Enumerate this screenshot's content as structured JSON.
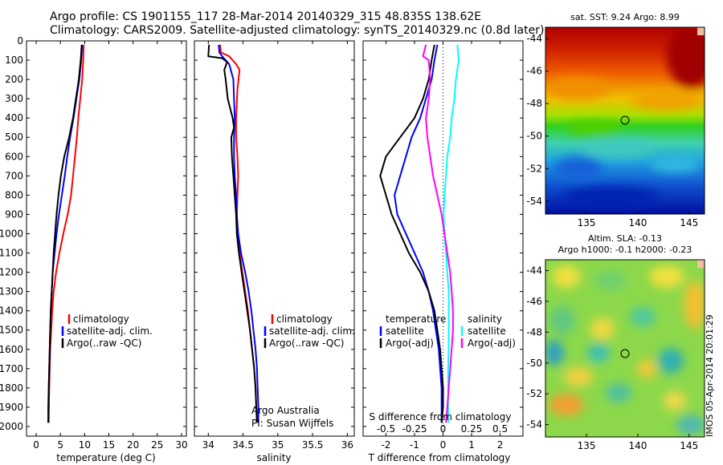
{
  "header": {
    "line1": "Argo profile: CS 1901155_117 28-Mar-2014 20140329_315 48.835S 138.62E",
    "line2": "Climatology: CARS2009. Satellite-adjusted climatology: synTS_20140329.nc (0.8d later)"
  },
  "stamp": "IMOS 05-Apr-2014 20:01:29",
  "colors": {
    "red": "#ff0000",
    "blue": "#0000ff",
    "black": "#000000",
    "cyan": "#00ffff",
    "magenta": "#ff00ff"
  },
  "chart_data": [
    {
      "type": "line",
      "name": "temperature-panel",
      "xlabel": "temperature (deg C)",
      "xlim": [
        -2,
        31
      ],
      "ylim": [
        0,
        2050
      ],
      "xticks": [
        0,
        5,
        10,
        15,
        20,
        25,
        30
      ],
      "yticks": [
        0,
        100,
        200,
        300,
        400,
        500,
        600,
        700,
        800,
        900,
        1000,
        1100,
        1200,
        1300,
        1400,
        1500,
        1600,
        1700,
        1800,
        1900,
        2000
      ],
      "legend": [
        "climatology",
        "satellite-adj. clim.",
        "Argo(..raw -QC)"
      ],
      "series": [
        {
          "name": "climatology",
          "color": "red",
          "points": [
            [
              9.8,
              20
            ],
            [
              9.7,
              100
            ],
            [
              9.5,
              200
            ],
            [
              9.1,
              300
            ],
            [
              8.7,
              400
            ],
            [
              8.4,
              500
            ],
            [
              8.0,
              600
            ],
            [
              7.6,
              700
            ],
            [
              7.2,
              800
            ],
            [
              6.5,
              900
            ],
            [
              5.6,
              1000
            ],
            [
              4.8,
              1100
            ],
            [
              4.1,
              1200
            ],
            [
              3.6,
              1300
            ],
            [
              3.3,
              1400
            ],
            [
              3.1,
              1500
            ],
            [
              2.9,
              1600
            ],
            [
              2.8,
              1700
            ],
            [
              2.7,
              1800
            ],
            [
              2.6,
              1900
            ],
            [
              2.6,
              1980
            ]
          ]
        },
        {
          "name": "satellite-adj. clim.",
          "color": "blue",
          "points": [
            [
              9.5,
              20
            ],
            [
              9.3,
              100
            ],
            [
              8.9,
              200
            ],
            [
              8.3,
              300
            ],
            [
              7.7,
              400
            ],
            [
              7.0,
              500
            ],
            [
              6.4,
              600
            ],
            [
              5.9,
              700
            ],
            [
              5.3,
              800
            ],
            [
              4.7,
              900
            ],
            [
              4.2,
              1000
            ],
            [
              3.8,
              1100
            ],
            [
              3.4,
              1200
            ],
            [
              3.2,
              1300
            ],
            [
              3.0,
              1400
            ],
            [
              2.9,
              1500
            ],
            [
              2.8,
              1600
            ],
            [
              2.7,
              1700
            ],
            [
              2.6,
              1800
            ],
            [
              2.6,
              1900
            ],
            [
              2.5,
              1980
            ]
          ]
        },
        {
          "name": "Argo(..raw -QC)",
          "color": "black",
          "points": [
            [
              9.4,
              20
            ],
            [
              9.2,
              100
            ],
            [
              8.8,
              200
            ],
            [
              8.2,
              300
            ],
            [
              7.6,
              400
            ],
            [
              6.8,
              500
            ],
            [
              5.8,
              600
            ],
            [
              5.1,
              700
            ],
            [
              4.6,
              800
            ],
            [
              4.2,
              900
            ],
            [
              3.9,
              1000
            ],
            [
              3.6,
              1100
            ],
            [
              3.4,
              1200
            ],
            [
              3.2,
              1300
            ],
            [
              3.0,
              1400
            ],
            [
              2.9,
              1500
            ],
            [
              2.8,
              1600
            ],
            [
              2.7,
              1700
            ],
            [
              2.6,
              1800
            ],
            [
              2.5,
              1900
            ],
            [
              2.5,
              1980
            ]
          ]
        }
      ]
    },
    {
      "type": "line",
      "name": "salinity-panel",
      "xlabel": "salinity",
      "xlim": [
        33.8,
        36.1
      ],
      "ylim": [
        0,
        2050
      ],
      "xticks": [
        34,
        34.5,
        35,
        35.5,
        36
      ],
      "legend": [
        "climatology",
        "satellite-adj. clim.",
        "Argo(..raw -QC)"
      ],
      "annotation": [
        "Argo Australia",
        "PI: Susan Wijffels"
      ],
      "series": [
        {
          "name": "climatology",
          "color": "red",
          "points": [
            [
              34.17,
              20
            ],
            [
              34.18,
              60
            ],
            [
              34.3,
              80
            ],
            [
              34.4,
              120
            ],
            [
              34.45,
              150
            ],
            [
              34.42,
              250
            ],
            [
              34.4,
              400
            ],
            [
              34.4,
              500
            ],
            [
              34.42,
              600
            ],
            [
              34.43,
              700
            ],
            [
              34.42,
              800
            ],
            [
              34.41,
              900
            ],
            [
              34.42,
              1000
            ],
            [
              34.45,
              1100
            ],
            [
              34.49,
              1200
            ],
            [
              34.53,
              1300
            ],
            [
              34.57,
              1400
            ],
            [
              34.6,
              1500
            ],
            [
              34.63,
              1600
            ],
            [
              34.66,
              1700
            ],
            [
              34.68,
              1800
            ],
            [
              34.69,
              1900
            ],
            [
              34.7,
              1980
            ]
          ]
        },
        {
          "name": "satellite-adj. clim.",
          "color": "blue",
          "points": [
            [
              34.15,
              20
            ],
            [
              34.16,
              60
            ],
            [
              34.2,
              80
            ],
            [
              34.3,
              120
            ],
            [
              34.36,
              200
            ],
            [
              34.37,
              300
            ],
            [
              34.38,
              400
            ],
            [
              34.37,
              500
            ],
            [
              34.37,
              600
            ],
            [
              34.38,
              700
            ],
            [
              34.4,
              800
            ],
            [
              34.41,
              900
            ],
            [
              34.43,
              1000
            ],
            [
              34.47,
              1100
            ],
            [
              34.53,
              1200
            ],
            [
              34.58,
              1300
            ],
            [
              34.62,
              1400
            ],
            [
              34.65,
              1500
            ],
            [
              34.68,
              1600
            ],
            [
              34.7,
              1700
            ],
            [
              34.71,
              1800
            ],
            [
              34.72,
              1900
            ],
            [
              34.72,
              1980
            ]
          ]
        },
        {
          "name": "Argo(..raw -QC)",
          "color": "black",
          "points": [
            [
              34.01,
              20
            ],
            [
              34.0,
              80
            ],
            [
              34.2,
              90
            ],
            [
              34.27,
              110
            ],
            [
              34.23,
              150
            ],
            [
              34.25,
              200
            ],
            [
              34.28,
              300
            ],
            [
              34.35,
              400
            ],
            [
              34.37,
              450
            ],
            [
              34.33,
              500
            ],
            [
              34.34,
              600
            ],
            [
              34.36,
              700
            ],
            [
              34.38,
              800
            ],
            [
              34.4,
              900
            ],
            [
              34.41,
              1000
            ],
            [
              34.44,
              1100
            ],
            [
              34.48,
              1200
            ],
            [
              34.52,
              1300
            ],
            [
              34.56,
              1400
            ],
            [
              34.6,
              1500
            ],
            [
              34.63,
              1600
            ],
            [
              34.66,
              1700
            ],
            [
              34.68,
              1800
            ],
            [
              34.69,
              1900
            ],
            [
              34.7,
              1980
            ]
          ]
        }
      ]
    },
    {
      "type": "line",
      "name": "difference-panel",
      "xlabel": "T difference from climatology",
      "xlim": [
        -2.8,
        2.8
      ],
      "ylim": [
        0,
        2050
      ],
      "xticks": [
        -2,
        -1,
        0,
        1,
        2
      ],
      "top_axis_label": "S difference from climatology",
      "top_ticks": [
        "-0.5",
        "-0.25",
        "0",
        "0.25",
        "0.5"
      ],
      "top_tick_values": [
        -0.5,
        -0.25,
        0,
        0.25,
        0.5
      ],
      "legend_titles": [
        "temperature",
        "salinity"
      ],
      "legend": [
        "satellite",
        "Argo(-adj)",
        "satellite",
        "Argo(-adj)"
      ],
      "series": [
        {
          "name": "temperature satellite",
          "color": "blue",
          "points": [
            [
              -0.2,
              20
            ],
            [
              -0.3,
              100
            ],
            [
              -0.4,
              200
            ],
            [
              -0.6,
              300
            ],
            [
              -0.8,
              400
            ],
            [
              -1.1,
              500
            ],
            [
              -1.3,
              600
            ],
            [
              -1.5,
              700
            ],
            [
              -1.7,
              800
            ],
            [
              -1.6,
              900
            ],
            [
              -1.3,
              1000
            ],
            [
              -1.0,
              1100
            ],
            [
              -0.7,
              1200
            ],
            [
              -0.5,
              1300
            ],
            [
              -0.35,
              1400
            ],
            [
              -0.25,
              1500
            ],
            [
              -0.15,
              1600
            ],
            [
              -0.1,
              1700
            ],
            [
              -0.05,
              1800
            ],
            [
              -0.05,
              1900
            ],
            [
              -0.05,
              1980
            ]
          ]
        },
        {
          "name": "temperature Argo(-adj)",
          "color": "black",
          "points": [
            [
              -0.3,
              20
            ],
            [
              -0.4,
              100
            ],
            [
              -0.5,
              200
            ],
            [
              -0.7,
              300
            ],
            [
              -1.0,
              400
            ],
            [
              -1.5,
              500
            ],
            [
              -2.0,
              600
            ],
            [
              -2.2,
              700
            ],
            [
              -2.0,
              800
            ],
            [
              -1.8,
              900
            ],
            [
              -1.5,
              1000
            ],
            [
              -1.2,
              1100
            ],
            [
              -0.8,
              1200
            ],
            [
              -0.5,
              1300
            ],
            [
              -0.3,
              1400
            ],
            [
              -0.2,
              1500
            ],
            [
              -0.1,
              1600
            ],
            [
              -0.05,
              1700
            ],
            [
              0.0,
              1800
            ],
            [
              0.0,
              1900
            ],
            [
              -0.05,
              1980
            ]
          ]
        },
        {
          "name": "salinity satellite",
          "color": "cyan",
          "points": [
            [
              0.5,
              20
            ],
            [
              0.55,
              100
            ],
            [
              0.45,
              200
            ],
            [
              0.4,
              300
            ],
            [
              0.3,
              400
            ],
            [
              0.25,
              500
            ],
            [
              0.15,
              600
            ],
            [
              0.1,
              700
            ],
            [
              0.05,
              800
            ],
            [
              0.02,
              900
            ],
            [
              0.05,
              1000
            ],
            [
              0.1,
              1100
            ],
            [
              0.15,
              1200
            ],
            [
              0.2,
              1300
            ],
            [
              0.2,
              1400
            ],
            [
              0.2,
              1500
            ],
            [
              0.2,
              1600
            ],
            [
              0.18,
              1700
            ],
            [
              0.18,
              1800
            ],
            [
              0.18,
              1900
            ],
            [
              0.18,
              1980
            ]
          ]
        },
        {
          "name": "salinity Argo(-adj)",
          "color": "magenta",
          "points": [
            [
              -0.6,
              20
            ],
            [
              -0.7,
              80
            ],
            [
              -0.5,
              100
            ],
            [
              -0.45,
              200
            ],
            [
              -0.5,
              300
            ],
            [
              -0.6,
              400
            ],
            [
              -0.55,
              500
            ],
            [
              -0.45,
              600
            ],
            [
              -0.35,
              700
            ],
            [
              -0.2,
              800
            ],
            [
              -0.05,
              900
            ],
            [
              0.05,
              1000
            ],
            [
              0.15,
              1100
            ],
            [
              0.25,
              1200
            ],
            [
              0.3,
              1300
            ],
            [
              0.35,
              1400
            ],
            [
              0.35,
              1500
            ],
            [
              0.3,
              1600
            ],
            [
              0.25,
              1700
            ],
            [
              0.2,
              1800
            ],
            [
              0.15,
              1900
            ],
            [
              0.1,
              1980
            ]
          ]
        }
      ]
    },
    {
      "type": "heatmap",
      "name": "sst-map",
      "title": "sat. SST: 9.24  Argo: 8.99",
      "xlim": [
        131,
        146.5
      ],
      "ylim": [
        -54.8,
        -43.3
      ],
      "xticks": [
        135,
        140,
        145
      ],
      "yticks": [
        -44,
        -46,
        -48,
        -50,
        -52,
        -54
      ],
      "marker": [
        138.62,
        -48.835
      ]
    },
    {
      "type": "heatmap",
      "name": "sla-map",
      "title": [
        "Altim. SLA: -0.13",
        "Argo h1000: -0.1  h2000: -0.23"
      ],
      "xlim": [
        131,
        146.5
      ],
      "ylim": [
        -54.8,
        -43.3
      ],
      "xticks": [
        135,
        140,
        145
      ],
      "yticks": [
        -44,
        -46,
        -48,
        -50,
        -52,
        -54
      ],
      "marker": [
        138.62,
        -48.835
      ]
    }
  ]
}
